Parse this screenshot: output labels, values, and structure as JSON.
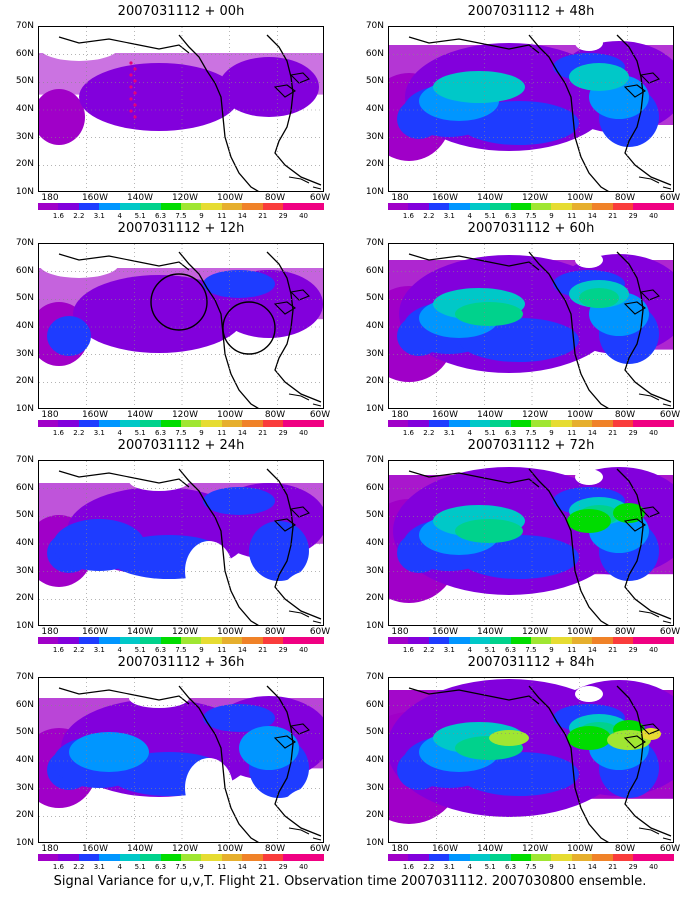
{
  "colorbar": {
    "labels": [
      "1.6",
      "2.2",
      "3.1",
      "4",
      "5.1",
      "6.3",
      "7.5",
      "9",
      "11",
      "14",
      "21",
      "29",
      "40"
    ],
    "colors": [
      "#a000c8",
      "#8200dc",
      "#1e3cff",
      "#0096ff",
      "#00c8c8",
      "#00d28c",
      "#00dc00",
      "#a0e632",
      "#e6dc32",
      "#e6af2d",
      "#f08228",
      "#fa3c3c",
      "#f00082"
    ]
  },
  "axes": {
    "lat_labels": [
      "70N",
      "60N",
      "50N",
      "40N",
      "30N",
      "20N",
      "10N"
    ],
    "lon_labels": [
      "180",
      "160W",
      "140W",
      "120W",
      "100W",
      "80W",
      "60W"
    ]
  },
  "panels": [
    {
      "title": "2007031112 + 00h",
      "level": 0,
      "variant": "circles0"
    },
    {
      "title": "2007031112 + 48h",
      "level": 4,
      "variant": "none"
    },
    {
      "title": "2007031112 + 12h",
      "level": 1,
      "variant": "circles12"
    },
    {
      "title": "2007031112 + 60h",
      "level": 5,
      "variant": "none"
    },
    {
      "title": "2007031112 + 24h",
      "level": 2,
      "variant": "none"
    },
    {
      "title": "2007031112 + 72h",
      "level": 6,
      "variant": "none"
    },
    {
      "title": "2007031112 + 36h",
      "level": 3,
      "variant": "none"
    },
    {
      "title": "2007031112 + 84h",
      "level": 7,
      "variant": "none"
    }
  ],
  "caption": "Signal Variance for u,v,T. Flight 21. Observation time 2007031112. 2007030800 ensemble."
}
